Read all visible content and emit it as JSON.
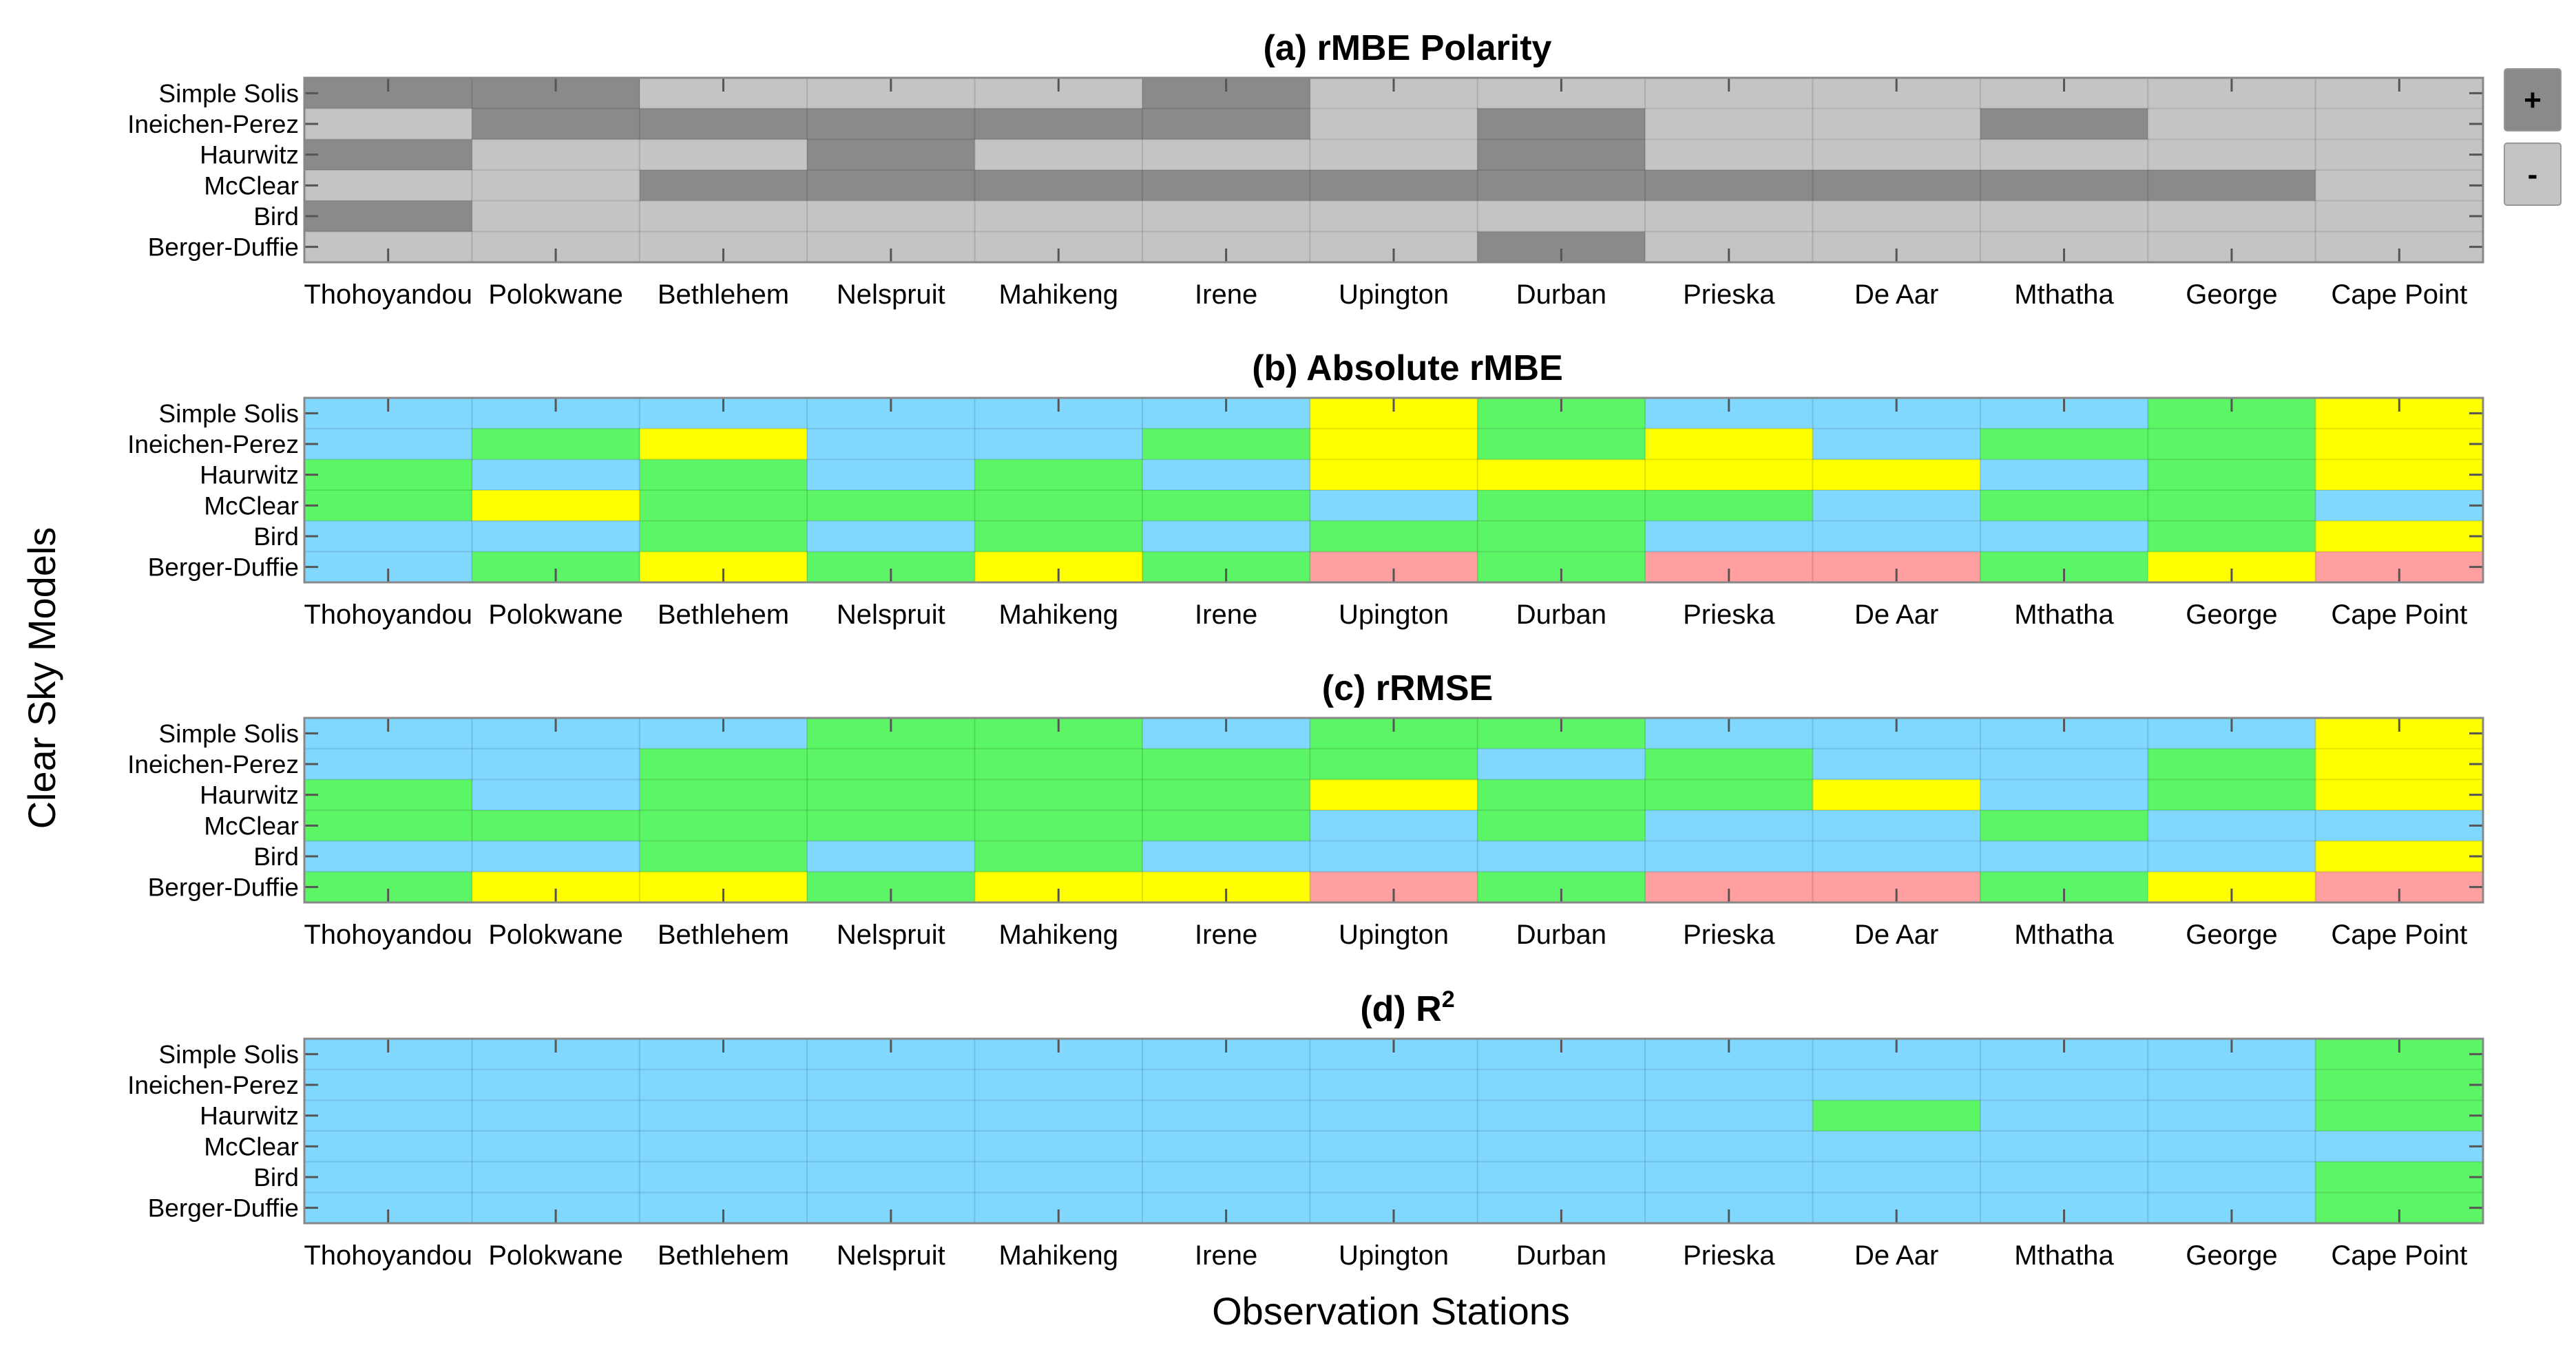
{
  "figure": {
    "ylabel": "Clear Sky Models",
    "xlabel": "Observation Stations"
  },
  "colors": {
    "Pos": "#8a8a8a",
    "Neg": "#c4c4c4",
    "B": "#80d8ff",
    "G": "#5cf566",
    "Y": "#ffff00",
    "P": "#ff9f9f"
  },
  "chart_data": [
    {
      "type": "heatmap",
      "title": "(a) rMBE Polarity",
      "rows": [
        "Simple Solis",
        "Ineichen-Perez",
        "Haurwitz",
        "McClear",
        "Bird",
        "Berger-Duffie"
      ],
      "columns": [
        "Thohoyandou",
        "Polokwane",
        "Bethlehem",
        "Nelspruit",
        "Mahikeng",
        "Irene",
        "Upington",
        "Durban",
        "Prieska",
        "De Aar",
        "Mthatha",
        "George",
        "Cape Point"
      ],
      "values": [
        [
          "+",
          "+",
          "-",
          "-",
          "-",
          "+",
          "-",
          "-",
          "-",
          "-",
          "-",
          "-",
          "-"
        ],
        [
          "-",
          "+",
          "+",
          "+",
          "+",
          "+",
          "-",
          "+",
          "-",
          "-",
          "+",
          "-",
          "-"
        ],
        [
          "+",
          "-",
          "-",
          "+",
          "-",
          "-",
          "-",
          "+",
          "-",
          "-",
          "-",
          "-",
          "-"
        ],
        [
          "-",
          "-",
          "+",
          "+",
          "+",
          "+",
          "+",
          "+",
          "+",
          "+",
          "+",
          "+",
          "-"
        ],
        [
          "+",
          "-",
          "-",
          "-",
          "-",
          "-",
          "-",
          "-",
          "-",
          "-",
          "-",
          "-",
          "-"
        ],
        [
          "-",
          "-",
          "-",
          "-",
          "-",
          "-",
          "-",
          "+",
          "-",
          "-",
          "-",
          "-",
          "-"
        ]
      ],
      "legend": [
        {
          "label": "+",
          "color_key": "Pos"
        },
        {
          "label": "-",
          "color_key": "Neg"
        }
      ]
    },
    {
      "type": "heatmap",
      "title": "(b) Absolute rMBE",
      "rows": [
        "Simple Solis",
        "Ineichen-Perez",
        "Haurwitz",
        "McClear",
        "Bird",
        "Berger-Duffie"
      ],
      "columns": [
        "Thohoyandou",
        "Polokwane",
        "Bethlehem",
        "Nelspruit",
        "Mahikeng",
        "Irene",
        "Upington",
        "Durban",
        "Prieska",
        "De Aar",
        "Mthatha",
        "George",
        "Cape Point"
      ],
      "values": [
        [
          "B",
          "B",
          "B",
          "B",
          "B",
          "B",
          "Y",
          "G",
          "B",
          "B",
          "B",
          "G",
          "Y"
        ],
        [
          "B",
          "G",
          "Y",
          "B",
          "B",
          "G",
          "Y",
          "G",
          "Y",
          "B",
          "G",
          "G",
          "Y"
        ],
        [
          "G",
          "B",
          "G",
          "B",
          "G",
          "B",
          "Y",
          "Y",
          "Y",
          "Y",
          "B",
          "G",
          "Y"
        ],
        [
          "G",
          "Y",
          "G",
          "G",
          "G",
          "G",
          "B",
          "G",
          "G",
          "B",
          "G",
          "G",
          "B"
        ],
        [
          "B",
          "B",
          "G",
          "B",
          "G",
          "B",
          "G",
          "G",
          "B",
          "B",
          "B",
          "G",
          "Y"
        ],
        [
          "B",
          "G",
          "Y",
          "G",
          "Y",
          "G",
          "P",
          "G",
          "P",
          "P",
          "G",
          "Y",
          "P"
        ]
      ]
    },
    {
      "type": "heatmap",
      "title": "(c) rRMSE",
      "rows": [
        "Simple Solis",
        "Ineichen-Perez",
        "Haurwitz",
        "McClear",
        "Bird",
        "Berger-Duffie"
      ],
      "columns": [
        "Thohoyandou",
        "Polokwane",
        "Bethlehem",
        "Nelspruit",
        "Mahikeng",
        "Irene",
        "Upington",
        "Durban",
        "Prieska",
        "De Aar",
        "Mthatha",
        "George",
        "Cape Point"
      ],
      "values": [
        [
          "B",
          "B",
          "B",
          "G",
          "G",
          "B",
          "G",
          "G",
          "B",
          "B",
          "B",
          "B",
          "Y"
        ],
        [
          "B",
          "B",
          "G",
          "G",
          "G",
          "G",
          "G",
          "B",
          "G",
          "B",
          "B",
          "G",
          "Y"
        ],
        [
          "G",
          "B",
          "G",
          "G",
          "G",
          "G",
          "Y",
          "G",
          "G",
          "Y",
          "B",
          "G",
          "Y"
        ],
        [
          "G",
          "G",
          "G",
          "G",
          "G",
          "G",
          "B",
          "G",
          "B",
          "B",
          "G",
          "B",
          "B"
        ],
        [
          "B",
          "B",
          "G",
          "B",
          "G",
          "B",
          "B",
          "B",
          "B",
          "B",
          "B",
          "B",
          "Y"
        ],
        [
          "G",
          "Y",
          "Y",
          "G",
          "Y",
          "Y",
          "P",
          "G",
          "P",
          "P",
          "G",
          "Y",
          "P"
        ]
      ]
    },
    {
      "type": "heatmap",
      "title": "(d) R",
      "title_superscript": "2",
      "rows": [
        "Simple Solis",
        "Ineichen-Perez",
        "Haurwitz",
        "McClear",
        "Bird",
        "Berger-Duffie"
      ],
      "columns": [
        "Thohoyandou",
        "Polokwane",
        "Bethlehem",
        "Nelspruit",
        "Mahikeng",
        "Irene",
        "Upington",
        "Durban",
        "Prieska",
        "De Aar",
        "Mthatha",
        "George",
        "Cape Point"
      ],
      "values": [
        [
          "B",
          "B",
          "B",
          "B",
          "B",
          "B",
          "B",
          "B",
          "B",
          "B",
          "B",
          "B",
          "G"
        ],
        [
          "B",
          "B",
          "B",
          "B",
          "B",
          "B",
          "B",
          "B",
          "B",
          "B",
          "B",
          "B",
          "G"
        ],
        [
          "B",
          "B",
          "B",
          "B",
          "B",
          "B",
          "B",
          "B",
          "B",
          "G",
          "B",
          "B",
          "G"
        ],
        [
          "B",
          "B",
          "B",
          "B",
          "B",
          "B",
          "B",
          "B",
          "B",
          "B",
          "B",
          "B",
          "B"
        ],
        [
          "B",
          "B",
          "B",
          "B",
          "B",
          "B",
          "B",
          "B",
          "B",
          "B",
          "B",
          "B",
          "G"
        ],
        [
          "B",
          "B",
          "B",
          "B",
          "B",
          "B",
          "B",
          "B",
          "B",
          "B",
          "B",
          "B",
          "G"
        ]
      ]
    }
  ]
}
